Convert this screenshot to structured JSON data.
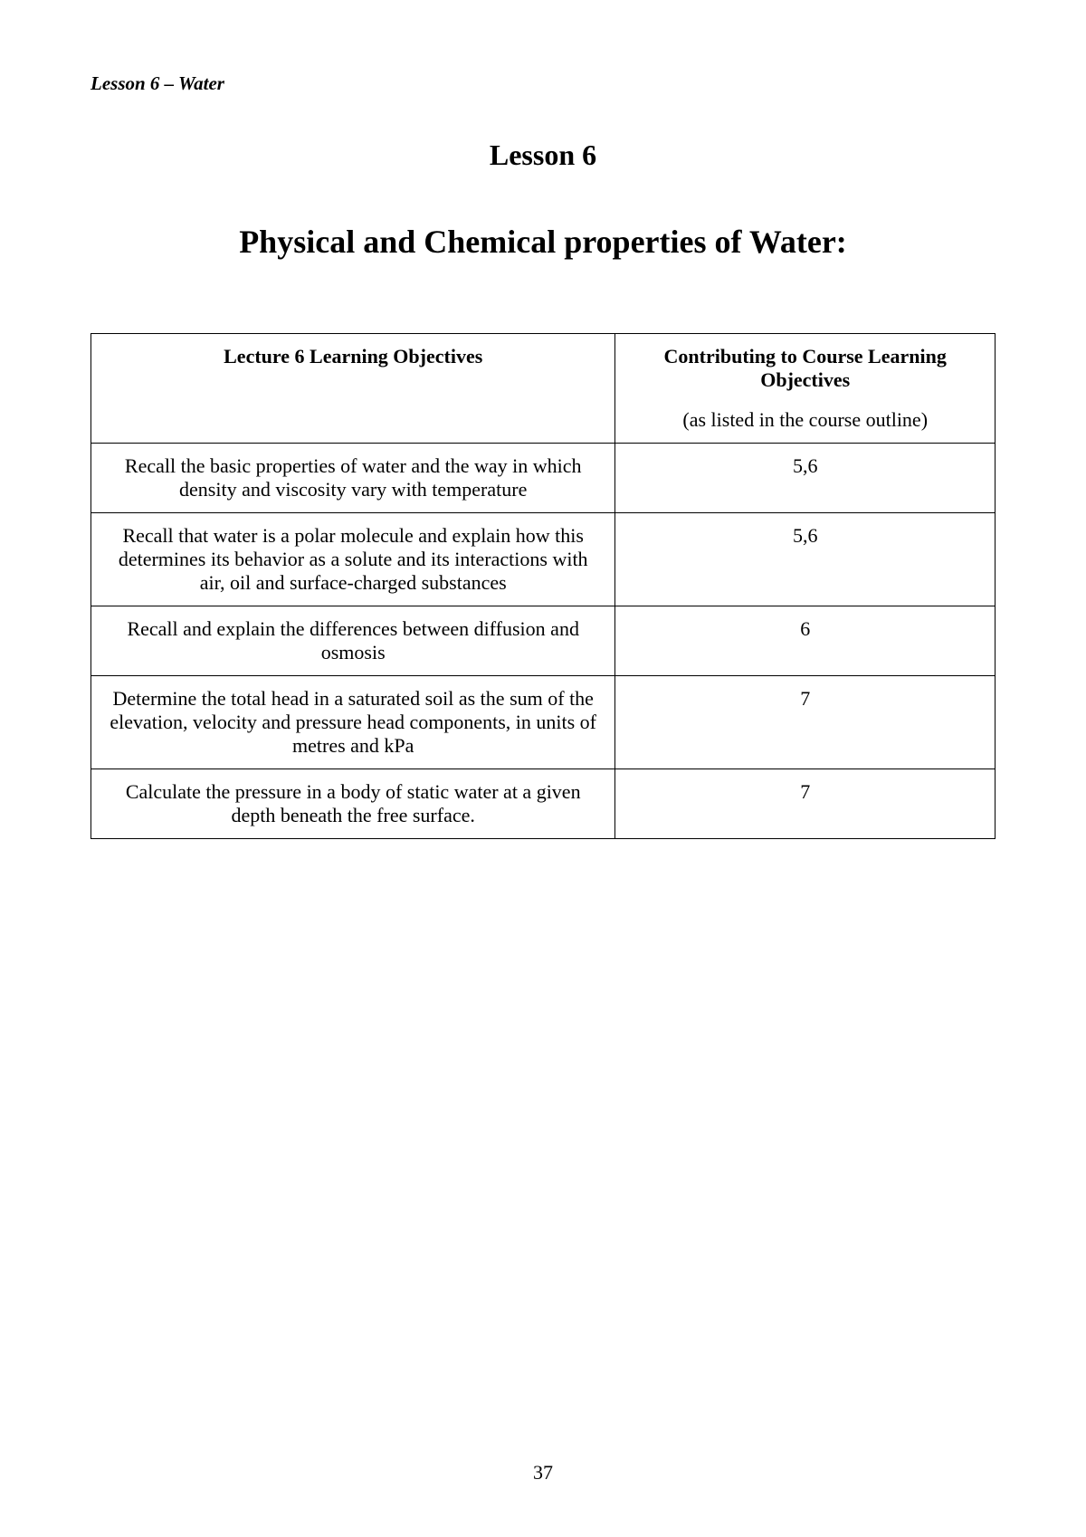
{
  "page": {
    "header": "Lesson 6 – Water",
    "lesson_title": "Lesson 6",
    "main_title": "Physical and Chemical properties of Water:",
    "page_number": "37"
  },
  "table": {
    "header_left": "Lecture 6 Learning Objectives",
    "header_right_bold": "Contributing to Course Learning Objectives",
    "header_right_normal": "(as listed in the course outline)",
    "rows": [
      {
        "objective": "Recall the basic properties of water and the way in which density and viscosity vary with temperature",
        "contributing": "5,6"
      },
      {
        "objective": "Recall that water is a polar molecule and explain how this determines its behavior as a solute and its interactions with air, oil and surface-charged substances",
        "contributing": "5,6"
      },
      {
        "objective": "Recall and explain the differences between diffusion and osmosis",
        "contributing": "6"
      },
      {
        "objective": "Determine the total head in a saturated soil as the sum of the elevation, velocity and pressure head components, in units of metres and kPa",
        "contributing": "7"
      },
      {
        "objective": "Calculate the pressure in a body of static water at a given depth beneath the free surface.",
        "contributing": "7"
      }
    ]
  },
  "styles": {
    "background_color": "#ffffff",
    "text_color": "#000000",
    "border_color": "#000000",
    "font_family": "Times New Roman",
    "header_fontsize": 21,
    "lesson_title_fontsize": 32,
    "main_title_fontsize": 36,
    "table_fontsize": 22,
    "page_number_fontsize": 22
  }
}
